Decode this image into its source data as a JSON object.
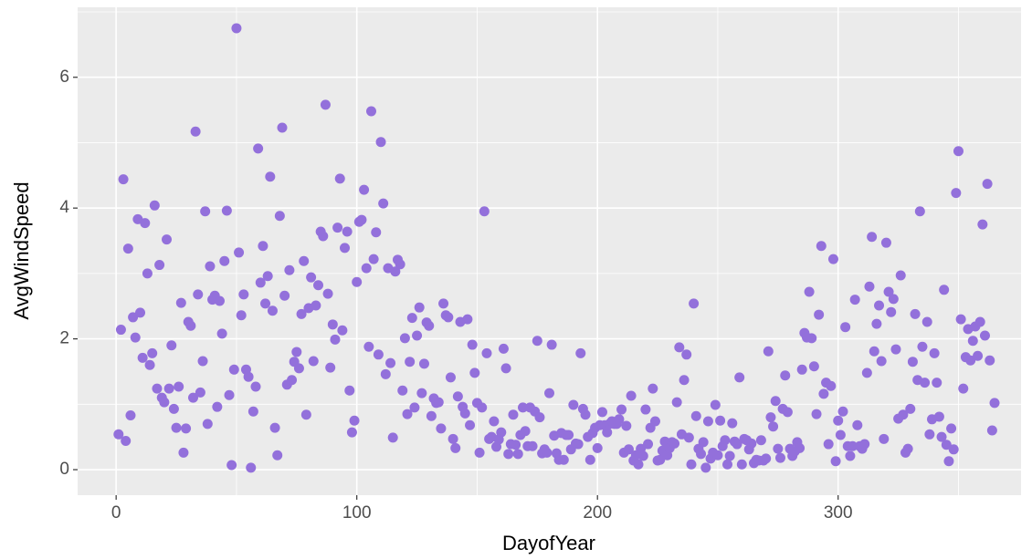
{
  "chart_data": {
    "type": "scatter",
    "x_label": "DayofYear",
    "y_label": "AvgWindSpeed",
    "color": "#9370db",
    "xlim": [
      -16,
      376
    ],
    "ylim": [
      -0.39,
      7.07
    ],
    "xticks": [
      0,
      100,
      200,
      300
    ],
    "yticks": [
      0,
      2,
      4,
      6
    ],
    "grid": true,
    "x": [
      1,
      2,
      3,
      4,
      5,
      6,
      7,
      8,
      9,
      10,
      11,
      12,
      13,
      14,
      15,
      16,
      17,
      18,
      19,
      20,
      21,
      22,
      23,
      24,
      25,
      26,
      27,
      28,
      29,
      30,
      31,
      32,
      33,
      34,
      35,
      36,
      37,
      38,
      39,
      40,
      41,
      42,
      43,
      44,
      45,
      46,
      47,
      48,
      49,
      50,
      51,
      52,
      53,
      54,
      55,
      56,
      57,
      58,
      59,
      60,
      61,
      62,
      63,
      64,
      65,
      66,
      67,
      68,
      69,
      70,
      71,
      72,
      73,
      74,
      75,
      76,
      77,
      78,
      79,
      80,
      81,
      82,
      83,
      84,
      85,
      86,
      87,
      88,
      89,
      90,
      91,
      92,
      93,
      94,
      95,
      96,
      97,
      98,
      99,
      100,
      101,
      102,
      103,
      104,
      105,
      106,
      107,
      108,
      109,
      110,
      111,
      112,
      113,
      114,
      115,
      116,
      117,
      118,
      119,
      120,
      121,
      122,
      123,
      124,
      125,
      126,
      127,
      128,
      129,
      130,
      131,
      132,
      133,
      134,
      135,
      136,
      137,
      138,
      139,
      140,
      141,
      142,
      143,
      144,
      145,
      146,
      147,
      148,
      149,
      150,
      151,
      152,
      153,
      154,
      155,
      156,
      157,
      158,
      159,
      160,
      161,
      162,
      163,
      164,
      165,
      166,
      167,
      168,
      169,
      170,
      171,
      172,
      173,
      174,
      175,
      176,
      177,
      178,
      179,
      180,
      181,
      182,
      183,
      184,
      185,
      186,
      187,
      188,
      189,
      190,
      191,
      192,
      193,
      194,
      195,
      196,
      197,
      198,
      199,
      200,
      201,
      202,
      203,
      204,
      205,
      206,
      207,
      208,
      209,
      210,
      211,
      212,
      213,
      214,
      215,
      216,
      217,
      218,
      219,
      220,
      221,
      222,
      223,
      224,
      225,
      226,
      227,
      228,
      229,
      230,
      231,
      232,
      233,
      234,
      235,
      236,
      237,
      238,
      239,
      240,
      241,
      242,
      243,
      244,
      245,
      246,
      247,
      248,
      249,
      250,
      251,
      252,
      253,
      254,
      255,
      256,
      257,
      258,
      259,
      260,
      261,
      262,
      263,
      264,
      265,
      266,
      267,
      268,
      269,
      270,
      271,
      272,
      273,
      274,
      275,
      276,
      277,
      278,
      279,
      280,
      281,
      282,
      283,
      284,
      285,
      286,
      287,
      288,
      289,
      290,
      291,
      292,
      293,
      294,
      295,
      296,
      297,
      298,
      299,
      300,
      301,
      302,
      303,
      304,
      305,
      306,
      307,
      308,
      309,
      310,
      311,
      312,
      313,
      314,
      315,
      316,
      317,
      318,
      319,
      320,
      321,
      322,
      323,
      324,
      325,
      326,
      327,
      328,
      329,
      330,
      331,
      332,
      333,
      334,
      335,
      336,
      337,
      338,
      339,
      340,
      341,
      342,
      343,
      344,
      345,
      346,
      347,
      348,
      349,
      350,
      351,
      352,
      353,
      354,
      355,
      356,
      357,
      358,
      359,
      360,
      361,
      362,
      363,
      364,
      365
    ],
    "values": [
      0.54,
      2.14,
      4.44,
      0.44,
      3.38,
      0.83,
      2.33,
      2.02,
      3.83,
      2.4,
      1.71,
      3.77,
      3.0,
      1.6,
      1.78,
      4.04,
      1.24,
      3.13,
      1.1,
      1.03,
      3.52,
      1.24,
      1.9,
      0.93,
      0.64,
      1.27,
      2.55,
      0.26,
      0.63,
      2.26,
      2.2,
      1.1,
      5.17,
      2.68,
      1.18,
      1.66,
      3.95,
      0.7,
      3.11,
      2.6,
      2.66,
      0.96,
      2.58,
      2.08,
      3.19,
      3.96,
      1.14,
      0.07,
      1.53,
      6.75,
      3.32,
      2.36,
      2.68,
      1.53,
      1.42,
      0.03,
      0.89,
      1.27,
      4.91,
      2.86,
      3.42,
      2.54,
      2.96,
      4.48,
      2.43,
      0.64,
      0.22,
      3.88,
      5.23,
      2.66,
      1.3,
      3.05,
      1.37,
      1.65,
      1.8,
      1.55,
      2.38,
      3.19,
      0.84,
      2.47,
      2.94,
      1.66,
      2.51,
      2.82,
      3.64,
      3.57,
      5.58,
      2.69,
      1.56,
      2.22,
      1.99,
      3.7,
      4.45,
      2.13,
      3.39,
      3.64,
      1.21,
      0.57,
      0.75,
      2.87,
      3.79,
      3.82,
      4.28,
      3.08,
      1.88,
      5.48,
      3.22,
      3.63,
      1.76,
      5.01,
      4.07,
      1.46,
      3.08,
      1.63,
      0.49,
      3.03,
      3.21,
      3.14,
      1.21,
      2.01,
      0.85,
      1.65,
      2.32,
      0.95,
      2.05,
      2.48,
      1.17,
      1.62,
      2.25,
      2.2,
      0.82,
      1.09,
      1.02,
      1.03,
      0.63,
      2.54,
      2.36,
      2.33,
      1.41,
      0.47,
      0.33,
      1.12,
      2.26,
      0.96,
      0.86,
      2.3,
      0.68,
      1.91,
      1.48,
      1.02,
      0.26,
      0.95,
      3.95,
      1.78,
      0.47,
      0.5,
      0.74,
      0.35,
      0.46,
      0.57,
      1.85,
      1.55,
      0.24,
      0.39,
      0.84,
      0.38,
      0.24,
      0.53,
      0.95,
      0.59,
      0.36,
      0.95,
      0.36,
      0.89,
      1.97,
      0.8,
      0.25,
      0.31,
      0.26,
      1.17,
      1.91,
      0.52,
      0.25,
      0.15,
      0.56,
      0.15,
      0.53,
      0.53,
      0.31,
      0.99,
      0.4,
      0.39,
      1.78,
      0.93,
      0.84,
      0.5,
      0.15,
      0.56,
      0.64,
      0.33,
      0.68,
      0.88,
      0.68,
      0.57,
      0.7,
      0.74,
      0.7,
      0.7,
      0.77,
      0.92,
      0.26,
      0.67,
      0.31,
      1.13,
      0.14,
      0.22,
      0.08,
      0.32,
      0.21,
      0.92,
      0.39,
      0.64,
      1.24,
      0.74,
      0.14,
      0.15,
      0.29,
      0.43,
      0.22,
      0.33,
      0.42,
      0.4,
      1.03,
      1.87,
      0.54,
      1.37,
      1.76,
      0.49,
      0.08,
      2.54,
      0.82,
      0.32,
      0.24,
      0.42,
      0.03,
      0.74,
      0.17,
      0.26,
      0.99,
      0.22,
      0.75,
      0.36,
      0.45,
      0.08,
      0.21,
      0.71,
      0.43,
      0.39,
      1.41,
      0.08,
      0.47,
      0.45,
      0.31,
      0.4,
      0.1,
      0.15,
      0.14,
      0.45,
      0.14,
      0.17,
      1.81,
      0.8,
      0.66,
      1.05,
      0.32,
      0.18,
      0.93,
      1.44,
      0.88,
      0.32,
      0.21,
      0.28,
      0.42,
      0.33,
      1.53,
      2.09,
      2.02,
      2.72,
      2.01,
      1.58,
      0.85,
      2.37,
      3.42,
      1.16,
      1.33,
      0.39,
      1.28,
      3.22,
      0.13,
      0.75,
      0.53,
      0.89,
      2.18,
      0.36,
      0.21,
      0.36,
      2.6,
      0.68,
      0.36,
      0.32,
      0.39,
      1.48,
      2.8,
      3.56,
      1.81,
      2.23,
      2.51,
      1.66,
      0.47,
      3.47,
      2.72,
      2.41,
      2.61,
      1.84,
      0.78,
      2.97,
      0.84,
      0.26,
      0.32,
      0.93,
      1.65,
      2.38,
      1.37,
      3.95,
      1.88,
      1.33,
      2.26,
      0.54,
      0.77,
      1.78,
      1.33,
      0.81,
      0.5,
      2.75,
      0.38,
      0.13,
      0.63,
      0.31,
      4.23,
      4.87,
      2.3,
      1.24,
      1.72,
      2.15,
      1.67,
      1.97,
      2.19,
      1.74,
      2.26,
      3.75,
      2.05,
      4.37,
      1.67,
      0.6,
      1.02
    ]
  }
}
